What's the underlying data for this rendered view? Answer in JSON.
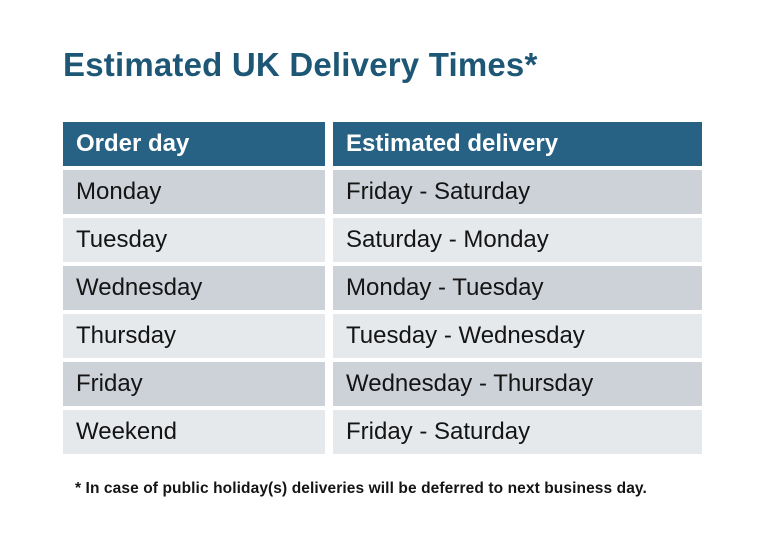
{
  "page": {
    "title": "Estimated UK Delivery Times*",
    "footnote": "* In case of public holiday(s) deliveries will be deferred to next business day."
  },
  "table": {
    "headers": [
      "Order day",
      "Estimated delivery"
    ],
    "rows": [
      {
        "order_day": "Monday",
        "delivery": "Friday - Saturday"
      },
      {
        "order_day": "Tuesday",
        "delivery": "Saturday - Monday"
      },
      {
        "order_day": "Wednesday",
        "delivery": "Monday - Tuesday"
      },
      {
        "order_day": "Thursday",
        "delivery": "Tuesday - Wednesday"
      },
      {
        "order_day": "Friday",
        "delivery": "Wednesday - Thursday"
      },
      {
        "order_day": "Weekend",
        "delivery": "Friday - Saturday"
      }
    ]
  },
  "colors": {
    "background": "#FFFFFF",
    "title": "#1D5775",
    "header_bg": "#276284",
    "header_text": "#FFFFFF",
    "row_dark_bg": "#CDD1D8",
    "row_light_bg": "#E6E9EC",
    "cell_text": "#141414"
  }
}
